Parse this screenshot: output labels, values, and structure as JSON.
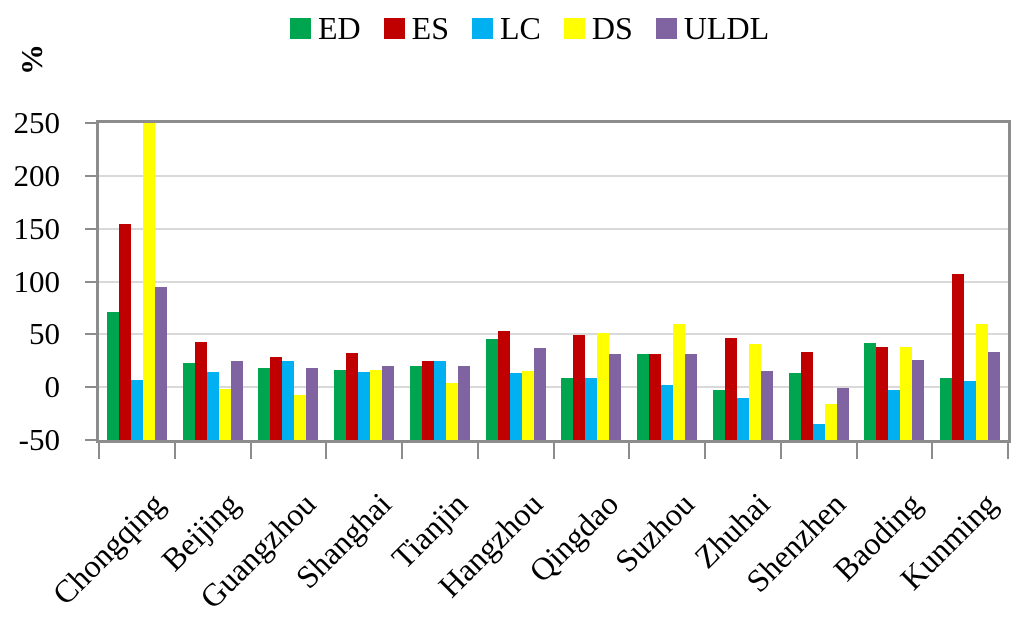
{
  "chart_data": {
    "type": "bar",
    "title": "",
    "ylabel": "%",
    "xlabel": "",
    "ylim": [
      -50,
      250
    ],
    "ytick_interval": 50,
    "yticks": [
      250,
      200,
      150,
      100,
      50,
      0,
      -50
    ],
    "bar_baseline": -50,
    "grid": true,
    "legend_position": "top",
    "categories": [
      "Chongqing",
      "Beijing",
      "Guangzhou",
      "Shanghai",
      "Tianjin",
      "Hangzhou",
      "Qingdao",
      "Suzhou",
      "Zhuhai",
      "Shenzhen",
      "Baoding",
      "Kunming"
    ],
    "series": [
      {
        "name": "ED",
        "color": "#00A64F",
        "values": [
          71,
          23,
          18,
          16,
          20,
          46,
          9,
          31,
          -3,
          13,
          42,
          9
        ]
      },
      {
        "name": "ES",
        "color": "#C00000",
        "values": [
          154,
          43,
          29,
          32,
          25,
          53,
          49,
          31,
          47,
          33,
          38,
          107
        ]
      },
      {
        "name": "LC",
        "color": "#00B0F0",
        "values": [
          7,
          14,
          25,
          14,
          25,
          13,
          9,
          2,
          -10,
          -35,
          -3,
          6
        ]
      },
      {
        "name": "DS",
        "color": "#FFFF00",
        "values": [
          250,
          -2,
          -7,
          16,
          4,
          15,
          51,
          60,
          41,
          -16,
          38,
          60
        ]
      },
      {
        "name": "ULDL",
        "color": "#8064A2",
        "values": [
          95,
          25,
          18,
          20,
          20,
          37,
          31,
          31,
          15,
          -1,
          26,
          33
        ]
      }
    ]
  },
  "colors": {
    "background": "#FFFFFF",
    "grid": "#D9D9D9",
    "axis": "#8C8C8C",
    "text": "#000000"
  }
}
